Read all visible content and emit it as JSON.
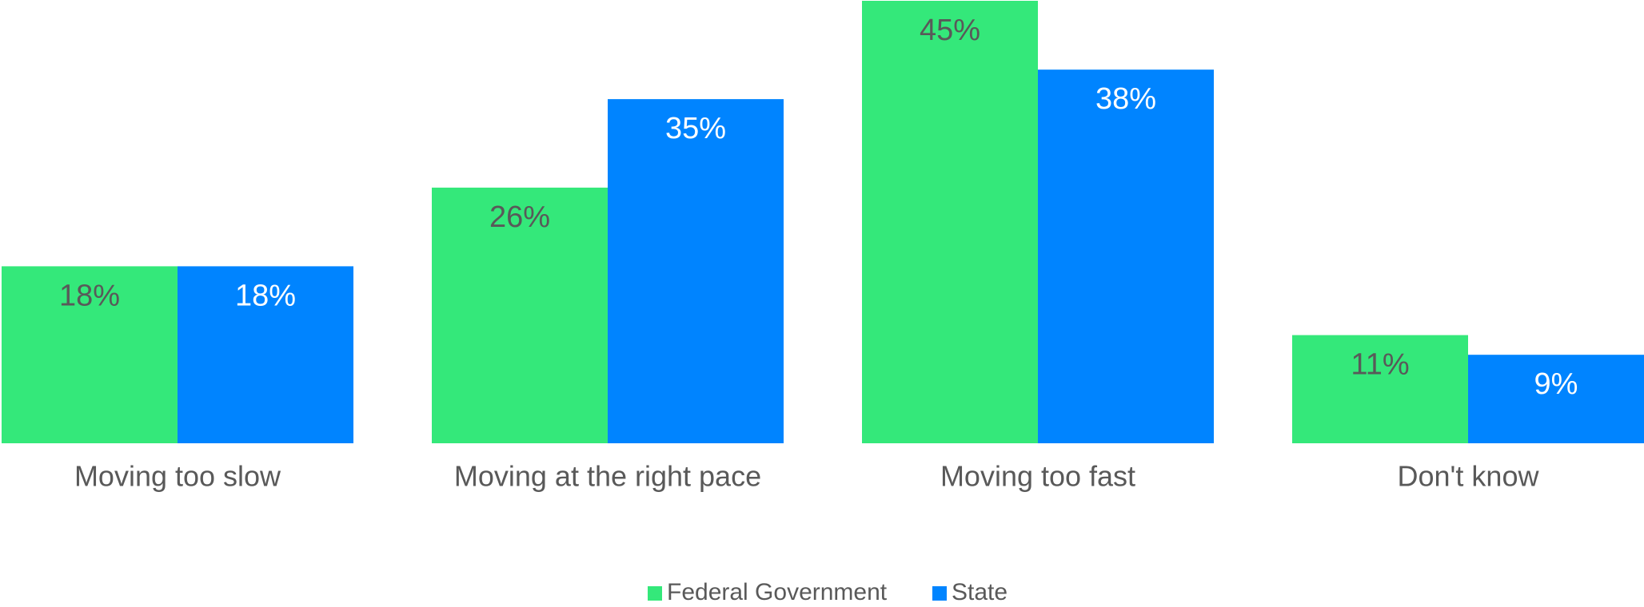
{
  "chart_data": {
    "type": "bar",
    "categories": [
      "Moving too slow",
      "Moving at the right pace",
      "Moving too fast",
      "Don't know"
    ],
    "series": [
      {
        "name": "Federal Government",
        "color": "#34e87a",
        "values": [
          18,
          26,
          45,
          11
        ],
        "value_labels": [
          "18%",
          "26%",
          "45%",
          "11%"
        ]
      },
      {
        "name": "State",
        "color": "#0084ff",
        "values": [
          18,
          35,
          38,
          9
        ],
        "value_labels": [
          "18%",
          "35%",
          "38%",
          "9%"
        ]
      }
    ],
    "ylim": [
      0,
      45
    ]
  }
}
